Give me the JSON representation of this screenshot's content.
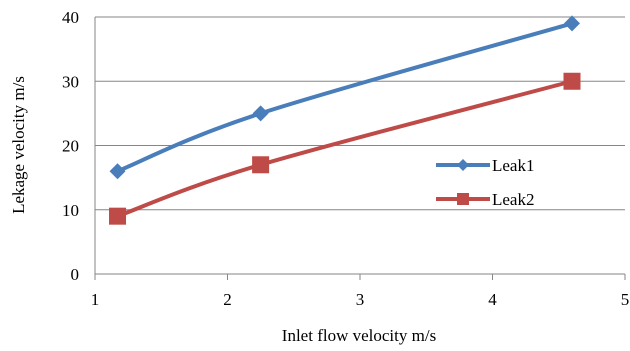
{
  "chart_data": {
    "type": "line",
    "title": "",
    "xlabel": "Inlet flow velocity m/s",
    "ylabel": "Lekage velocity m/s",
    "xlim": [
      1,
      5
    ],
    "ylim": [
      0,
      40
    ],
    "xticks": [
      "1",
      "2",
      "3",
      "4",
      "5"
    ],
    "yticks": [
      "0",
      "10",
      "20",
      "30",
      "40"
    ],
    "grid": "horizontal",
    "legend_position": "right",
    "series": [
      {
        "name": "Leak1",
        "color": "#4a7ebb",
        "marker": "diamond",
        "x": [
          1.17,
          2.25,
          4.6
        ],
        "y": [
          16,
          25,
          39
        ]
      },
      {
        "name": "Leak2",
        "color": "#be4b48",
        "marker": "square",
        "x": [
          1.17,
          2.25,
          4.6
        ],
        "y": [
          9,
          17,
          30
        ]
      }
    ]
  }
}
